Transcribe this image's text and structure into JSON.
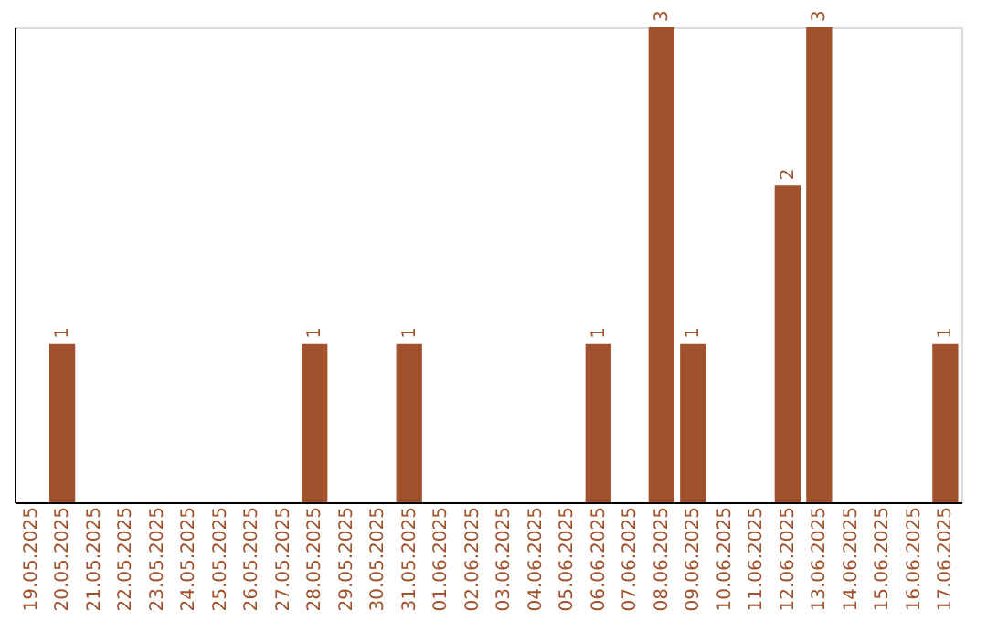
{
  "chart_data": {
    "type": "bar",
    "categories": [
      "19.05.2025",
      "20.05.2025",
      "21.05.2025",
      "22.05.2025",
      "23.05.2025",
      "24.05.2025",
      "25.05.2025",
      "26.05.2025",
      "27.05.2025",
      "28.05.2025",
      "29.05.2025",
      "30.05.2025",
      "31.05.2025",
      "01.06.2025",
      "02.06.2025",
      "03.06.2025",
      "04.06.2025",
      "05.06.2025",
      "06.06.2025",
      "07.06.2025",
      "08.06.2025",
      "09.06.2025",
      "10.06.2025",
      "11.06.2025",
      "12.06.2025",
      "13.06.2025",
      "14.06.2025",
      "15.06.2025",
      "16.06.2025",
      "17.06.2025"
    ],
    "values": [
      0,
      1,
      0,
      0,
      0,
      0,
      0,
      0,
      0,
      1,
      0,
      0,
      1,
      0,
      0,
      0,
      0,
      0,
      1,
      0,
      3,
      1,
      0,
      0,
      2,
      3,
      0,
      0,
      0,
      1
    ],
    "value_labels": [
      null,
      "1",
      null,
      null,
      null,
      null,
      null,
      null,
      null,
      "1",
      null,
      null,
      "1",
      null,
      null,
      null,
      null,
      null,
      "1",
      null,
      "3",
      "1",
      null,
      null,
      "2",
      "3",
      null,
      null,
      null,
      "1"
    ],
    "color": "#a0522d",
    "ylim": [
      0,
      3
    ],
    "tick_labels": "x",
    "grid": false
  }
}
